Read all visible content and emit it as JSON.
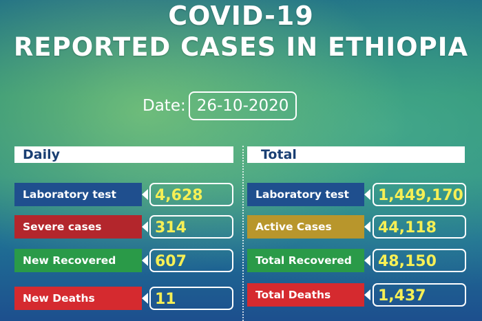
{
  "title": {
    "line1": "COVID-19",
    "line2": "REPORTED CASES IN ETHIOPIA"
  },
  "date": {
    "label": "Date:",
    "value": "26-10-2020"
  },
  "daily": {
    "header": "Daily",
    "rows": [
      {
        "label": "Laboratory test",
        "value": "4,628",
        "color": "#1f4f8e"
      },
      {
        "label": "Severe cases",
        "value": "314",
        "color": "#b3262c"
      },
      {
        "label": "New Recovered",
        "value": "607",
        "color": "#2a9a48"
      },
      {
        "label": "New Deaths",
        "value": "11",
        "color": "#d52a2f"
      }
    ]
  },
  "total": {
    "header": "Total",
    "rows": [
      {
        "label": "Laboratory test",
        "value": "1,449,170",
        "color": "#1f4f8e"
      },
      {
        "label": "Active Cases",
        "value": "44,118",
        "color": "#b8962c"
      },
      {
        "label": "Total Recovered",
        "value": "48,150",
        "color": "#2a9a48"
      },
      {
        "label": "Total Deaths",
        "value": "1,437",
        "color": "#d52a2f"
      }
    ]
  }
}
